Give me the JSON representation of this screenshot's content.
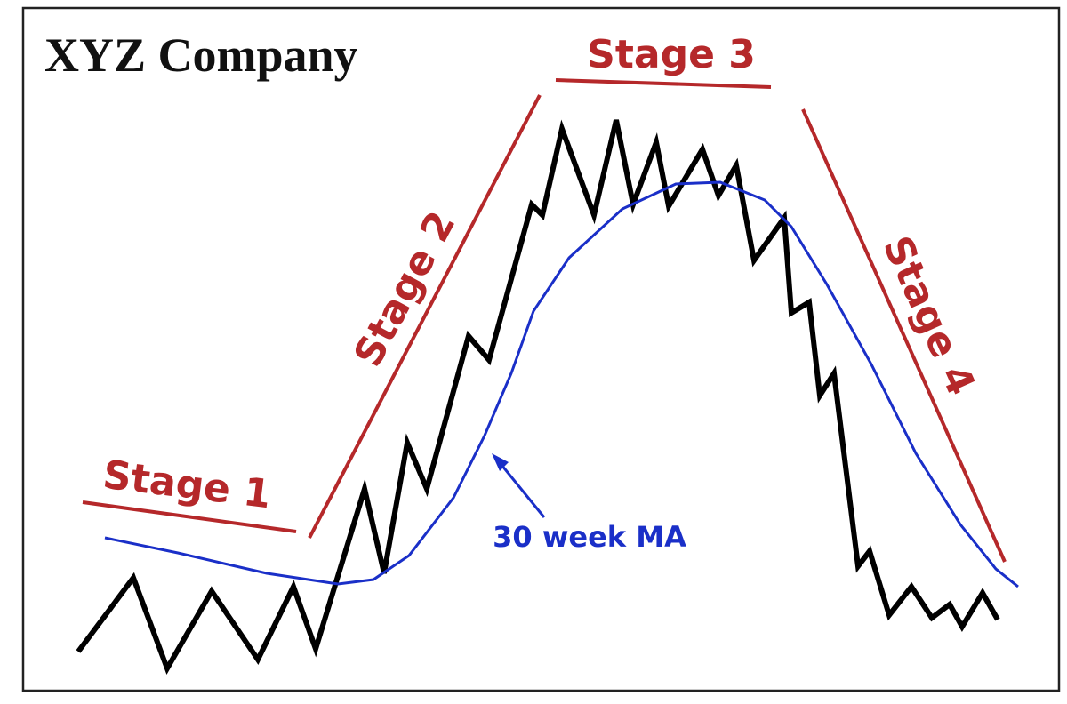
{
  "title": "XYZ Company",
  "stages": [
    {
      "label": "Stage 1"
    },
    {
      "label": "Stage 2"
    },
    {
      "label": "Stage 3"
    },
    {
      "label": "Stage 4"
    }
  ],
  "annotation": "30 week MA"
}
